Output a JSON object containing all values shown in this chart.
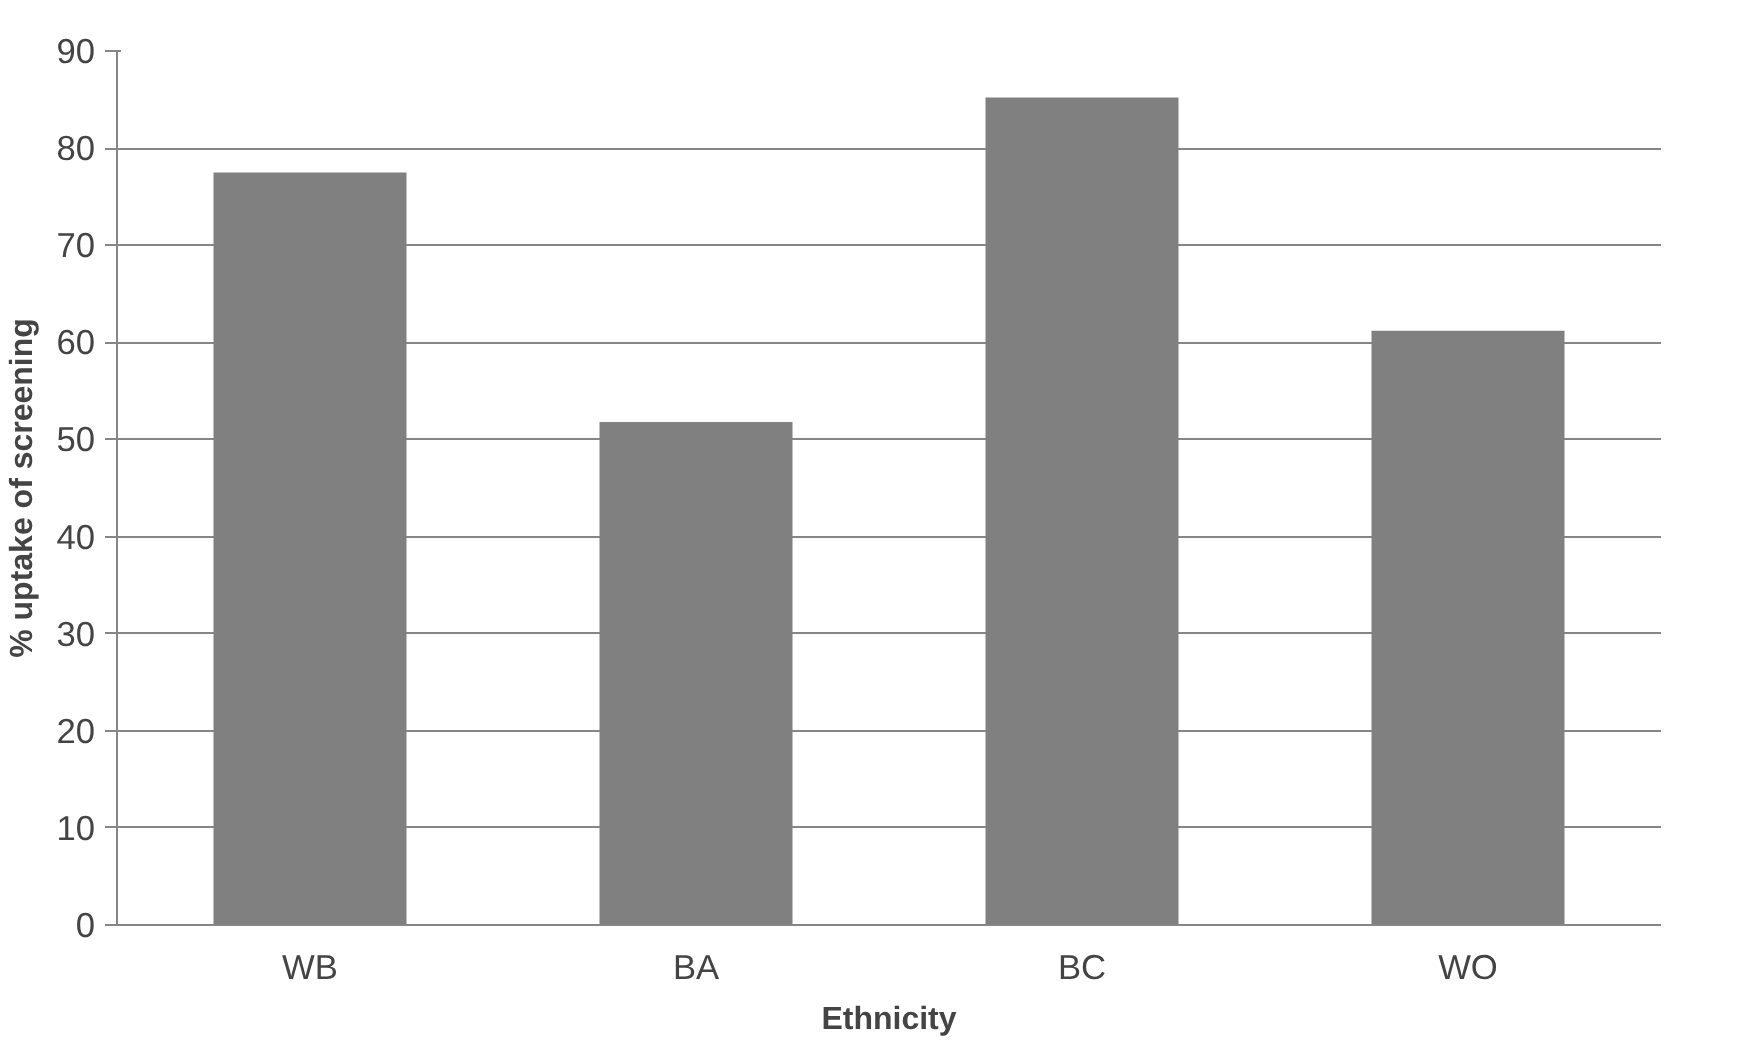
{
  "chart_data": {
    "type": "bar",
    "xlabel": "Ethnicity",
    "ylabel": "% uptake of screening",
    "categories": [
      "WB",
      "BA",
      "BC",
      "WO"
    ],
    "values": [
      77.5,
      51.8,
      85.2,
      61.2
    ],
    "color": "#808080",
    "ylim": [
      0,
      90
    ],
    "yticks": [
      0,
      10,
      20,
      30,
      40,
      50,
      60,
      70,
      80,
      90
    ],
    "grid": "y"
  }
}
